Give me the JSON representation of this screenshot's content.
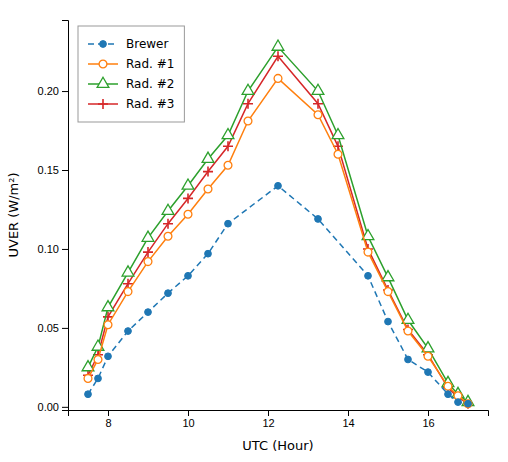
{
  "chart_data": {
    "type": "line",
    "xlabel": "UTC (Hour)",
    "ylabel": "UVER (W/m²)",
    "xlim": [
      7.0,
      17.5
    ],
    "ylim": [
      -0.002,
      0.245
    ],
    "xticks": [
      8,
      10,
      12,
      14,
      16
    ],
    "yticks": [
      {
        "value": 0,
        "label": "0.00"
      },
      {
        "value": 0.05,
        "label": "0.05"
      },
      {
        "value": 0.1,
        "label": "0.10"
      },
      {
        "value": 0.15,
        "label": "0.15"
      },
      {
        "value": 0.2,
        "label": "0.20"
      }
    ],
    "grid": false,
    "legend": "upper left",
    "series": [
      {
        "name": "Brewer",
        "marker": "circle",
        "line_style": "dashed",
        "x": [
          7.5,
          7.75,
          8.0,
          8.5,
          9.0,
          9.5,
          10.0,
          10.5,
          11.0,
          12.25,
          13.25,
          14.5,
          15.0,
          15.5,
          16.0,
          16.5,
          16.75,
          17.0
        ],
        "values": [
          0.008,
          0.018,
          0.032,
          0.048,
          0.06,
          0.072,
          0.083,
          0.097,
          0.116,
          0.14,
          0.119,
          0.083,
          0.054,
          0.03,
          0.022,
          0.008,
          0.003,
          0.002
        ]
      },
      {
        "name": "Rad. #1",
        "marker": "circle-open",
        "line_style": "solid",
        "x": [
          7.5,
          7.75,
          8.0,
          8.5,
          9.0,
          9.5,
          10.0,
          10.5,
          11.0,
          11.5,
          12.25,
          13.25,
          13.75,
          14.5,
          15.0,
          15.5,
          16.0,
          16.5,
          16.75,
          17.0
        ],
        "values": [
          0.018,
          0.03,
          0.052,
          0.073,
          0.092,
          0.108,
          0.122,
          0.138,
          0.153,
          0.181,
          0.208,
          0.185,
          0.16,
          0.098,
          0.073,
          0.048,
          0.032,
          0.013,
          0.007,
          0.002
        ]
      },
      {
        "name": "Rad. #2",
        "marker": "triangle-open",
        "line_style": "solid",
        "x": [
          7.5,
          7.75,
          8.0,
          8.5,
          9.0,
          9.5,
          10.0,
          10.5,
          11.0,
          11.5,
          12.25,
          13.25,
          13.75,
          14.5,
          15.0,
          15.5,
          16.0,
          16.5,
          16.75,
          17.0
        ],
        "values": [
          0.025,
          0.038,
          0.063,
          0.085,
          0.107,
          0.124,
          0.14,
          0.157,
          0.172,
          0.2,
          0.228,
          0.2,
          0.172,
          0.108,
          0.082,
          0.055,
          0.037,
          0.015,
          0.008,
          0.003
        ]
      },
      {
        "name": "Rad. #3",
        "marker": "plus",
        "line_style": "solid",
        "x": [
          7.5,
          7.75,
          8.0,
          8.5,
          9.0,
          9.5,
          10.0,
          10.5,
          11.0,
          11.5,
          12.25,
          13.25,
          13.75,
          14.5,
          15.0,
          15.5,
          16.0,
          16.5,
          16.75,
          17.0
        ],
        "values": [
          0.02,
          0.033,
          0.057,
          0.078,
          0.098,
          0.116,
          0.132,
          0.149,
          0.165,
          0.192,
          0.222,
          0.192,
          0.165,
          0.1,
          0.074,
          0.049,
          0.033,
          0.012,
          0.006,
          0.002
        ]
      }
    ]
  }
}
